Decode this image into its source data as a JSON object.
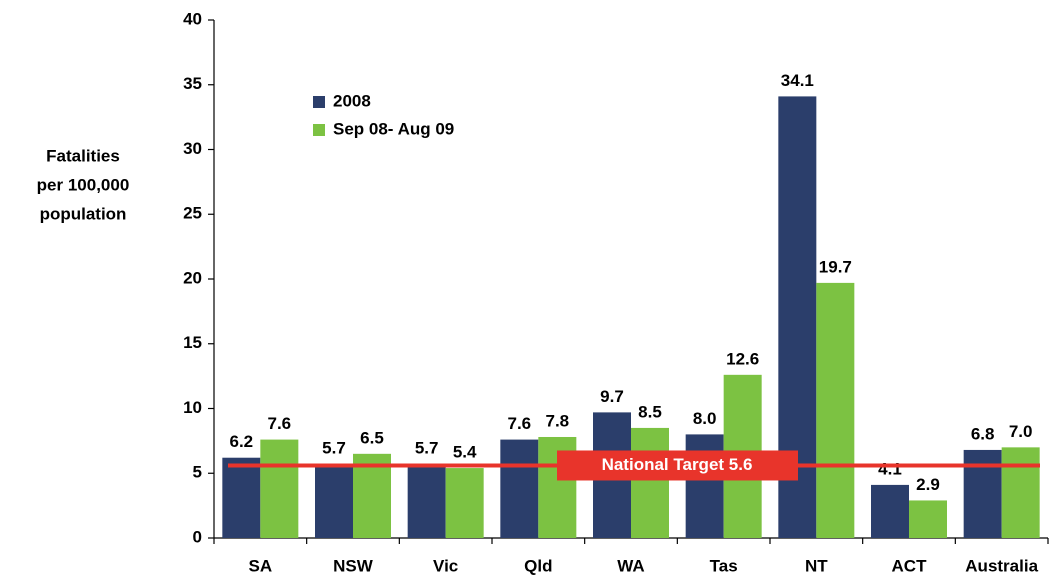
{
  "chart_data": {
    "type": "bar",
    "ylabel_lines": [
      "Fatalities",
      "per 100,000",
      "population"
    ],
    "categories": [
      "SA",
      "NSW",
      "Vic",
      "Qld",
      "WA",
      "Tas",
      "NT",
      "ACT",
      "Australia"
    ],
    "series": [
      {
        "name": "2008",
        "color": "#2b3e6b",
        "values": [
          6.2,
          5.7,
          5.7,
          7.6,
          9.7,
          8.0,
          34.1,
          4.1,
          6.8
        ],
        "value_labels": [
          "6.2",
          "5.7",
          "5.7",
          "7.6",
          "9.7",
          "8.0",
          "34.1",
          "4.1",
          "6.8"
        ]
      },
      {
        "name": "Sep 08- Aug 09",
        "color": "#7cc242",
        "values": [
          7.6,
          6.5,
          5.4,
          7.8,
          8.5,
          12.6,
          19.7,
          2.9,
          7.0
        ],
        "value_labels": [
          "7.6",
          "6.5",
          "5.4",
          "7.8",
          "8.5",
          "12.6",
          "19.7",
          "2.9",
          "7.0"
        ]
      }
    ],
    "ylim": [
      0,
      40
    ],
    "yticks": [
      0,
      5,
      10,
      15,
      20,
      25,
      30,
      35,
      40
    ],
    "reference_line": {
      "value": 5.6,
      "label": "National Target 5.6",
      "color": "#e8342b"
    },
    "legend": "upper left"
  }
}
